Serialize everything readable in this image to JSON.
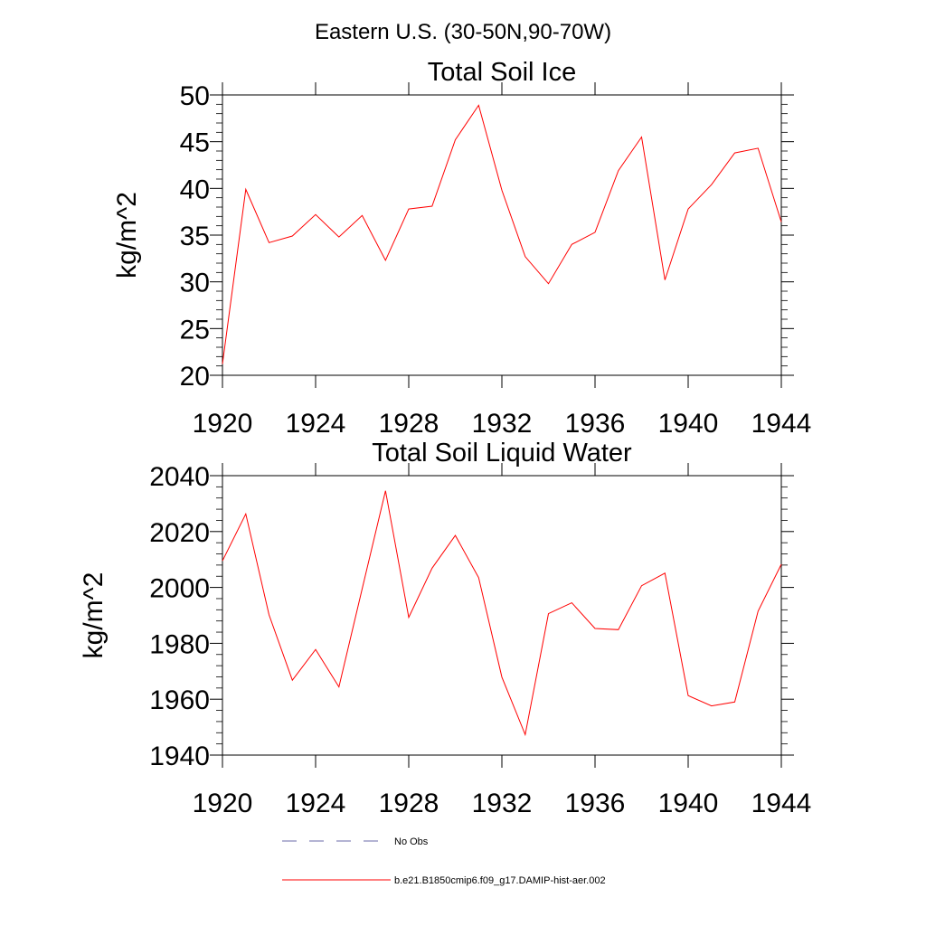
{
  "figure": {
    "main_title": "Eastern U.S. (30-50N,90-70W)"
  },
  "colors": {
    "model_line": "#ff0000",
    "obs_line": "#6a6aa8",
    "axis": "#000000"
  },
  "chart_data": [
    {
      "type": "line",
      "title": "Total Soil Ice",
      "xlabel": "",
      "ylabel": "kg/m^2",
      "xlim": [
        1920,
        1944
      ],
      "ylim": [
        20,
        50
      ],
      "x_ticks": [
        1920,
        1924,
        1928,
        1932,
        1936,
        1940,
        1944
      ],
      "y_ticks": [
        20,
        25,
        30,
        35,
        40,
        45,
        50
      ],
      "grid": false,
      "series": [
        {
          "name": "b.e21.B1850cmip6.f09_g17.DAMIP-hist-aer.002",
          "color": "#ff0000",
          "x": [
            1920,
            1921,
            1922,
            1923,
            1924,
            1925,
            1926,
            1927,
            1928,
            1929,
            1930,
            1931,
            1932,
            1933,
            1934,
            1935,
            1936,
            1937,
            1938,
            1939,
            1940,
            1941,
            1942,
            1943,
            1944
          ],
          "values": [
            21.2,
            39.9,
            34.2,
            34.9,
            37.2,
            34.8,
            37.1,
            32.3,
            37.8,
            38.1,
            45.2,
            48.9,
            39.8,
            32.7,
            29.8,
            34.0,
            35.3,
            41.9,
            45.5,
            30.2,
            37.8,
            40.4,
            43.8,
            44.3,
            36.4
          ]
        }
      ]
    },
    {
      "type": "line",
      "title": "Total Soil Liquid Water",
      "xlabel": "",
      "ylabel": "kg/m^2",
      "xlim": [
        1920,
        1944
      ],
      "ylim": [
        1940,
        2040
      ],
      "x_ticks": [
        1920,
        1924,
        1928,
        1932,
        1936,
        1940,
        1944
      ],
      "y_ticks": [
        1940,
        1960,
        1980,
        2000,
        2020,
        2040
      ],
      "grid": false,
      "series": [
        {
          "name": "b.e21.B1850cmip6.f09_g17.DAMIP-hist-aer.002",
          "color": "#ff0000",
          "x": [
            1920,
            1921,
            1922,
            1923,
            1924,
            1925,
            1926,
            1927,
            1928,
            1929,
            1930,
            1931,
            1932,
            1933,
            1934,
            1935,
            1936,
            1937,
            1938,
            1939,
            1940,
            1941,
            1942,
            1943,
            1944
          ],
          "values": [
            2009.5,
            2026.3,
            1990.2,
            1966.8,
            1977.8,
            1964.4,
            1999.5,
            2034.6,
            1989.3,
            2006.9,
            2018.6,
            2003.5,
            1967.9,
            1947.3,
            1990.6,
            1994.5,
            1985.3,
            1984.9,
            2000.6,
            2005.1,
            1961.3,
            1957.6,
            1959.0,
            1991.5,
            2008.3
          ]
        }
      ]
    }
  ],
  "legend": {
    "items": [
      {
        "label": "No Obs",
        "style": "dashed",
        "color": "#6a6aa8"
      },
      {
        "label": "b.e21.B1850cmip6.f09_g17.DAMIP-hist-aer.002",
        "style": "solid",
        "color": "#ff0000"
      }
    ]
  }
}
